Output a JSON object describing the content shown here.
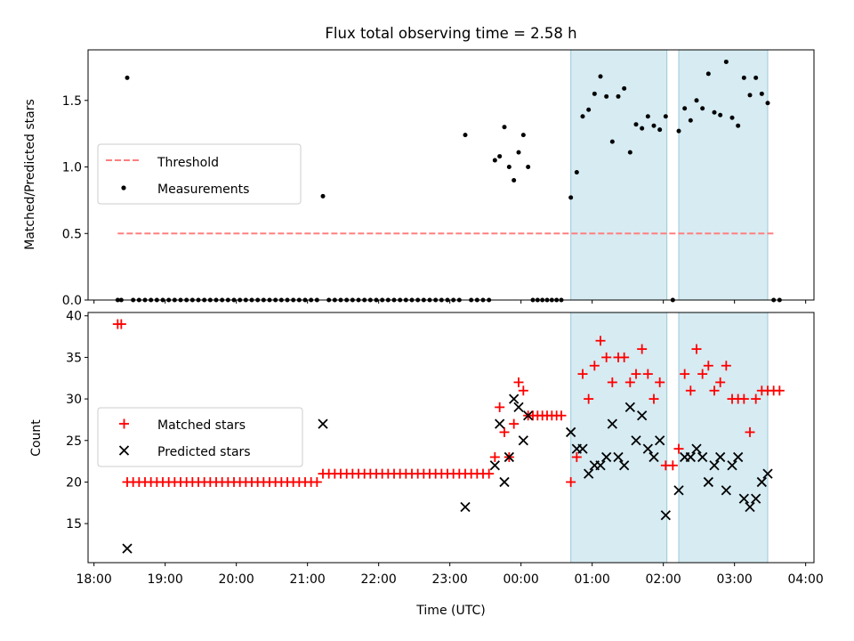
{
  "title": "Flux total observing time = 2.58 h",
  "chart_data": [
    {
      "type": "scatter",
      "ylabel": "Matched/Predicted stars",
      "xlim": [
        "17:55",
        "04:07"
      ],
      "ylim": [
        0,
        1.88
      ],
      "yticks": [
        "0.0",
        "0.5",
        "1.0",
        "1.5"
      ],
      "threshold": {
        "label": "Threshold",
        "value": 0.5,
        "x_start": "18:20",
        "x_end": "03:35",
        "color": "#ff7f7f"
      },
      "measurements_label": "Measurements",
      "legend_position": "center-left",
      "shaded_intervals": [
        [
          "00:42",
          "02:03"
        ],
        [
          "02:13",
          "03:28"
        ]
      ],
      "measurements": [
        [
          "18:20",
          0.0
        ],
        [
          "18:23",
          0.0
        ],
        [
          "18:28",
          1.67
        ],
        [
          "18:33",
          0.0
        ],
        [
          "18:38",
          0.0
        ],
        [
          "18:43",
          0.0
        ],
        [
          "18:48",
          0.0
        ],
        [
          "18:53",
          0.0
        ],
        [
          "18:58",
          0.0
        ],
        [
          "19:03",
          0.0
        ],
        [
          "19:08",
          0.0
        ],
        [
          "19:13",
          0.0
        ],
        [
          "19:18",
          0.0
        ],
        [
          "19:23",
          0.0
        ],
        [
          "19:28",
          0.0
        ],
        [
          "19:33",
          0.0
        ],
        [
          "19:38",
          0.0
        ],
        [
          "19:43",
          0.0
        ],
        [
          "19:48",
          0.0
        ],
        [
          "19:53",
          0.0
        ],
        [
          "19:58",
          0.0
        ],
        [
          "20:03",
          0.0
        ],
        [
          "20:08",
          0.0
        ],
        [
          "20:13",
          0.0
        ],
        [
          "20:18",
          0.0
        ],
        [
          "20:23",
          0.0
        ],
        [
          "20:28",
          0.0
        ],
        [
          "20:33",
          0.0
        ],
        [
          "20:38",
          0.0
        ],
        [
          "20:43",
          0.0
        ],
        [
          "20:48",
          0.0
        ],
        [
          "20:53",
          0.0
        ],
        [
          "20:58",
          0.0
        ],
        [
          "21:03",
          0.0
        ],
        [
          "21:08",
          0.0
        ],
        [
          "21:13",
          0.78
        ],
        [
          "21:18",
          0.0
        ],
        [
          "21:23",
          0.0
        ],
        [
          "21:28",
          0.0
        ],
        [
          "21:33",
          0.0
        ],
        [
          "21:38",
          0.0
        ],
        [
          "21:43",
          0.0
        ],
        [
          "21:48",
          0.0
        ],
        [
          "21:53",
          0.0
        ],
        [
          "21:58",
          0.0
        ],
        [
          "22:03",
          0.0
        ],
        [
          "22:08",
          0.0
        ],
        [
          "22:13",
          0.0
        ],
        [
          "22:18",
          0.0
        ],
        [
          "22:23",
          0.0
        ],
        [
          "22:28",
          0.0
        ],
        [
          "22:33",
          0.0
        ],
        [
          "22:38",
          0.0
        ],
        [
          "22:43",
          0.0
        ],
        [
          "22:48",
          0.0
        ],
        [
          "22:53",
          0.0
        ],
        [
          "22:58",
          0.0
        ],
        [
          "23:03",
          0.0
        ],
        [
          "23:08",
          0.0
        ],
        [
          "23:13",
          1.24
        ],
        [
          "23:18",
          0.0
        ],
        [
          "23:23",
          0.0
        ],
        [
          "23:28",
          0.0
        ],
        [
          "23:33",
          0.0
        ],
        [
          "23:38",
          1.05
        ],
        [
          "23:42",
          1.08
        ],
        [
          "23:46",
          1.3
        ],
        [
          "23:50",
          1.0
        ],
        [
          "23:54",
          0.9
        ],
        [
          "23:58",
          1.11
        ],
        [
          "00:02",
          1.24
        ],
        [
          "00:06",
          1.0
        ],
        [
          "00:10",
          0.0
        ],
        [
          "00:14",
          0.0
        ],
        [
          "00:18",
          0.0
        ],
        [
          "00:22",
          0.0
        ],
        [
          "00:26",
          0.0
        ],
        [
          "00:30",
          0.0
        ],
        [
          "00:34",
          0.0
        ],
        [
          "00:42",
          0.77
        ],
        [
          "00:47",
          0.96
        ],
        [
          "00:52",
          1.38
        ],
        [
          "00:57",
          1.43
        ],
        [
          "01:02",
          1.55
        ],
        [
          "01:07",
          1.68
        ],
        [
          "01:12",
          1.53
        ],
        [
          "01:17",
          1.19
        ],
        [
          "01:22",
          1.53
        ],
        [
          "01:27",
          1.59
        ],
        [
          "01:32",
          1.11
        ],
        [
          "01:37",
          1.32
        ],
        [
          "01:42",
          1.29
        ],
        [
          "01:47",
          1.38
        ],
        [
          "01:52",
          1.31
        ],
        [
          "01:57",
          1.28
        ],
        [
          "02:02",
          1.38
        ],
        [
          "02:08",
          0.0
        ],
        [
          "02:13",
          1.27
        ],
        [
          "02:18",
          1.44
        ],
        [
          "02:23",
          1.35
        ],
        [
          "02:28",
          1.5
        ],
        [
          "02:33",
          1.44
        ],
        [
          "02:38",
          1.7
        ],
        [
          "02:43",
          1.41
        ],
        [
          "02:48",
          1.39
        ],
        [
          "02:53",
          1.79
        ],
        [
          "02:58",
          1.37
        ],
        [
          "03:03",
          1.31
        ],
        [
          "03:08",
          1.67
        ],
        [
          "03:13",
          1.54
        ],
        [
          "03:18",
          1.67
        ],
        [
          "03:23",
          1.55
        ],
        [
          "03:28",
          1.48
        ],
        [
          "03:33",
          0.0
        ],
        [
          "03:38",
          0.0
        ]
      ]
    },
    {
      "type": "scatter",
      "xlabel": "Time (UTC)",
      "ylabel": "Count",
      "xlim": [
        "17:55",
        "04:07"
      ],
      "ylim": [
        10.3,
        40.4
      ],
      "yticks": [
        "15",
        "20",
        "25",
        "30",
        "35",
        "40"
      ],
      "xticks": [
        "18:00",
        "19:00",
        "20:00",
        "21:00",
        "22:00",
        "23:00",
        "00:00",
        "01:00",
        "02:00",
        "03:00",
        "04:00"
      ],
      "legend_position": "center-left",
      "shaded_intervals": [
        [
          "00:42",
          "02:03"
        ],
        [
          "02:13",
          "03:28"
        ]
      ],
      "series": [
        {
          "name": "Matched stars",
          "marker": "+",
          "color": "#ff0000",
          "points": [
            [
              "18:20",
              39
            ],
            [
              "18:23",
              39
            ],
            [
              "18:28",
              20
            ],
            [
              "18:33",
              20
            ],
            [
              "18:38",
              20
            ],
            [
              "18:43",
              20
            ],
            [
              "18:48",
              20
            ],
            [
              "18:53",
              20
            ],
            [
              "18:58",
              20
            ],
            [
              "19:03",
              20
            ],
            [
              "19:08",
              20
            ],
            [
              "19:13",
              20
            ],
            [
              "19:18",
              20
            ],
            [
              "19:23",
              20
            ],
            [
              "19:28",
              20
            ],
            [
              "19:33",
              20
            ],
            [
              "19:38",
              20
            ],
            [
              "19:43",
              20
            ],
            [
              "19:48",
              20
            ],
            [
              "19:53",
              20
            ],
            [
              "19:58",
              20
            ],
            [
              "20:03",
              20
            ],
            [
              "20:08",
              20
            ],
            [
              "20:13",
              20
            ],
            [
              "20:18",
              20
            ],
            [
              "20:23",
              20
            ],
            [
              "20:28",
              20
            ],
            [
              "20:33",
              20
            ],
            [
              "20:38",
              20
            ],
            [
              "20:43",
              20
            ],
            [
              "20:48",
              20
            ],
            [
              "20:53",
              20
            ],
            [
              "20:58",
              20
            ],
            [
              "21:03",
              20
            ],
            [
              "21:08",
              20
            ],
            [
              "21:13",
              21
            ],
            [
              "21:18",
              21
            ],
            [
              "21:23",
              21
            ],
            [
              "21:28",
              21
            ],
            [
              "21:33",
              21
            ],
            [
              "21:38",
              21
            ],
            [
              "21:43",
              21
            ],
            [
              "21:48",
              21
            ],
            [
              "21:53",
              21
            ],
            [
              "21:58",
              21
            ],
            [
              "22:03",
              21
            ],
            [
              "22:08",
              21
            ],
            [
              "22:13",
              21
            ],
            [
              "22:18",
              21
            ],
            [
              "22:23",
              21
            ],
            [
              "22:28",
              21
            ],
            [
              "22:33",
              21
            ],
            [
              "22:38",
              21
            ],
            [
              "22:43",
              21
            ],
            [
              "22:48",
              21
            ],
            [
              "22:53",
              21
            ],
            [
              "22:58",
              21
            ],
            [
              "23:03",
              21
            ],
            [
              "23:08",
              21
            ],
            [
              "23:13",
              21
            ],
            [
              "23:18",
              21
            ],
            [
              "23:23",
              21
            ],
            [
              "23:28",
              21
            ],
            [
              "23:33",
              21
            ],
            [
              "23:38",
              23
            ],
            [
              "23:42",
              29
            ],
            [
              "23:46",
              26
            ],
            [
              "23:50",
              23
            ],
            [
              "23:54",
              27
            ],
            [
              "23:58",
              32
            ],
            [
              "00:02",
              31
            ],
            [
              "00:06",
              28
            ],
            [
              "00:10",
              28
            ],
            [
              "00:14",
              28
            ],
            [
              "00:18",
              28
            ],
            [
              "00:22",
              28
            ],
            [
              "00:26",
              28
            ],
            [
              "00:30",
              28
            ],
            [
              "00:34",
              28
            ],
            [
              "00:42",
              20
            ],
            [
              "00:47",
              23
            ],
            [
              "00:52",
              33
            ],
            [
              "00:57",
              30
            ],
            [
              "01:02",
              34
            ],
            [
              "01:07",
              37
            ],
            [
              "01:12",
              35
            ],
            [
              "01:17",
              32
            ],
            [
              "01:22",
              35
            ],
            [
              "01:27",
              35
            ],
            [
              "01:32",
              32
            ],
            [
              "01:37",
              33
            ],
            [
              "01:42",
              36
            ],
            [
              "01:47",
              33
            ],
            [
              "01:52",
              30
            ],
            [
              "01:57",
              32
            ],
            [
              "02:02",
              22
            ],
            [
              "02:08",
              22
            ],
            [
              "02:13",
              24
            ],
            [
              "02:18",
              33
            ],
            [
              "02:23",
              31
            ],
            [
              "02:28",
              36
            ],
            [
              "02:33",
              33
            ],
            [
              "02:38",
              34
            ],
            [
              "02:43",
              31
            ],
            [
              "02:48",
              32
            ],
            [
              "02:53",
              34
            ],
            [
              "02:58",
              30
            ],
            [
              "03:03",
              30
            ],
            [
              "03:08",
              30
            ],
            [
              "03:13",
              26
            ],
            [
              "03:18",
              30
            ],
            [
              "03:23",
              31
            ],
            [
              "03:28",
              31
            ],
            [
              "03:33",
              31
            ],
            [
              "03:38",
              31
            ]
          ]
        },
        {
          "name": "Predicted stars",
          "marker": "x",
          "color": "#000000",
          "points": [
            [
              "18:28",
              12
            ],
            [
              "21:13",
              27
            ],
            [
              "23:13",
              17
            ],
            [
              "23:38",
              22
            ],
            [
              "23:42",
              27
            ],
            [
              "23:46",
              20
            ],
            [
              "23:50",
              23
            ],
            [
              "23:54",
              30
            ],
            [
              "23:58",
              29
            ],
            [
              "00:02",
              25
            ],
            [
              "00:06",
              28
            ],
            [
              "00:42",
              26
            ],
            [
              "00:47",
              24
            ],
            [
              "00:52",
              24
            ],
            [
              "00:57",
              21
            ],
            [
              "01:02",
              22
            ],
            [
              "01:07",
              22
            ],
            [
              "01:12",
              23
            ],
            [
              "01:17",
              27
            ],
            [
              "01:22",
              23
            ],
            [
              "01:27",
              22
            ],
            [
              "01:32",
              29
            ],
            [
              "01:37",
              25
            ],
            [
              "01:42",
              28
            ],
            [
              "01:47",
              24
            ],
            [
              "01:52",
              23
            ],
            [
              "01:57",
              25
            ],
            [
              "02:02",
              16
            ],
            [
              "02:13",
              19
            ],
            [
              "02:18",
              23
            ],
            [
              "02:23",
              23
            ],
            [
              "02:28",
              24
            ],
            [
              "02:33",
              23
            ],
            [
              "02:38",
              20
            ],
            [
              "02:43",
              22
            ],
            [
              "02:48",
              23
            ],
            [
              "02:53",
              19
            ],
            [
              "02:58",
              22
            ],
            [
              "03:03",
              23
            ],
            [
              "03:08",
              18
            ],
            [
              "03:13",
              17
            ],
            [
              "03:18",
              18
            ],
            [
              "03:23",
              20
            ],
            [
              "03:28",
              21
            ]
          ]
        }
      ]
    }
  ]
}
